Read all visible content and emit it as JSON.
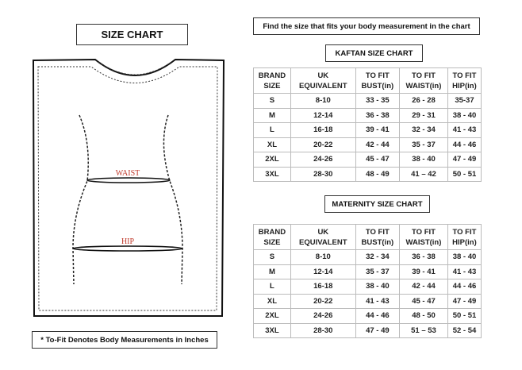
{
  "left": {
    "title": "SIZE CHART",
    "waist_label": "WAIST",
    "hip_label": "HIP",
    "note": "* To-Fit Denotes Body Measurements in Inches",
    "label_color": "#c0392b"
  },
  "right": {
    "header": "Find the size that fits your body measurement in the chart",
    "kaftan": {
      "title": "KAFTAN SIZE CHART",
      "columns": [
        [
          "BRAND",
          "SIZE"
        ],
        [
          "UK",
          "EQUIVALENT"
        ],
        [
          "TO FIT",
          "BUST(in)"
        ],
        [
          "TO FIT",
          "WAIST(in)"
        ],
        [
          "TO FIT",
          "HIP(in)"
        ]
      ],
      "rows": [
        [
          "S",
          "8-10",
          "33 - 35",
          "26 - 28",
          "35-37"
        ],
        [
          "M",
          "12-14",
          "36 - 38",
          "29 - 31",
          "38 - 40"
        ],
        [
          "L",
          "16-18",
          "39 - 41",
          "32 - 34",
          "41 - 43"
        ],
        [
          "XL",
          "20-22",
          "42 - 44",
          "35 - 37",
          "44 - 46"
        ],
        [
          "2XL",
          "24-26",
          "45 - 47",
          "38 - 40",
          "47 - 49"
        ],
        [
          "3XL",
          "28-30",
          "48 - 49",
          "41 – 42",
          "50 - 51"
        ]
      ]
    },
    "maternity": {
      "title": "MATERNITY SIZE CHART",
      "columns": [
        [
          "BRAND",
          "SIZE"
        ],
        [
          "UK",
          "EQUIVALENT"
        ],
        [
          "TO FIT",
          "BUST(in)"
        ],
        [
          "TO FIT",
          "WAIST(in)"
        ],
        [
          "TO FIT",
          "HIP(in)"
        ]
      ],
      "rows": [
        [
          "S",
          "8-10",
          "32 - 34",
          "36 - 38",
          "38 - 40"
        ],
        [
          "M",
          "12-14",
          "35 - 37",
          "39 - 41",
          "41 - 43"
        ],
        [
          "L",
          "16-18",
          "38 - 40",
          "42 - 44",
          "44 - 46"
        ],
        [
          "XL",
          "20-22",
          "41 - 43",
          "45 - 47",
          "47 - 49"
        ],
        [
          "2XL",
          "24-26",
          "44 - 46",
          "48 - 50",
          "50 - 51"
        ],
        [
          "3XL",
          "28-30",
          "47 - 49",
          "51 – 53",
          "52 - 54"
        ]
      ]
    }
  }
}
